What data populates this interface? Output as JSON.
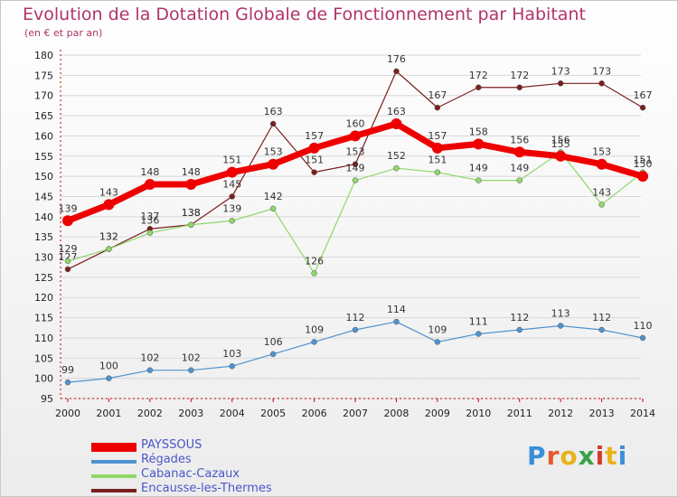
{
  "title": "Evolution de la Dotation Globale de Fonctionnement par Habitant",
  "subtitle": "(en € et par an)",
  "colors": {
    "title": "#b0336a",
    "axis": "#cc0000",
    "grid": "#d8d8d8",
    "legend_text": "#4a55c8"
  },
  "logo": {
    "text": "Proxiti",
    "letter_colors": [
      "#3a8fd8",
      "#e55a2b",
      "#e8b21a",
      "#3aa14a",
      "#d63a2b",
      "#e8b21a",
      "#3a8fd8"
    ]
  },
  "chart_data": {
    "type": "line",
    "x": [
      2000,
      2001,
      2002,
      2003,
      2004,
      2005,
      2006,
      2007,
      2008,
      2009,
      2010,
      2011,
      2012,
      2013,
      2014
    ],
    "ylim": [
      95,
      180
    ],
    "yticks": [
      95,
      100,
      105,
      110,
      115,
      120,
      125,
      130,
      135,
      140,
      145,
      150,
      155,
      160,
      165,
      170,
      175,
      180
    ],
    "grid": true,
    "legend_position": "bottom-left",
    "series": [
      {
        "name": "Encausse-les-Thermes",
        "color": "#7a1f1f",
        "width": 1.2,
        "marker": 3,
        "values": [
          127,
          132,
          137,
          138,
          145,
          163,
          151,
          153,
          176,
          167,
          172,
          172,
          173,
          173,
          167
        ]
      },
      {
        "name": "Cabanac-Cazaux",
        "color": "#8ed86a",
        "width": 1.2,
        "marker": 3,
        "values": [
          129,
          132,
          136,
          138,
          139,
          142,
          126,
          149,
          152,
          151,
          149,
          149,
          156,
          143,
          151
        ]
      },
      {
        "name": "Régades",
        "color": "#4f93cf",
        "width": 1.2,
        "marker": 3,
        "values": [
          99,
          100,
          102,
          102,
          103,
          106,
          109,
          112,
          114,
          109,
          111,
          112,
          113,
          112,
          110
        ]
      },
      {
        "name": "PAYSSOUS",
        "color": "#ee0000",
        "width": 7,
        "marker": 6,
        "values": [
          139,
          143,
          148,
          148,
          151,
          153,
          157,
          160,
          163,
          157,
          158,
          156,
          155,
          153,
          150
        ]
      }
    ],
    "legend_order": [
      "PAYSSOUS",
      "Régades",
      "Cabanac-Cazaux",
      "Encausse-les-Thermes"
    ]
  }
}
